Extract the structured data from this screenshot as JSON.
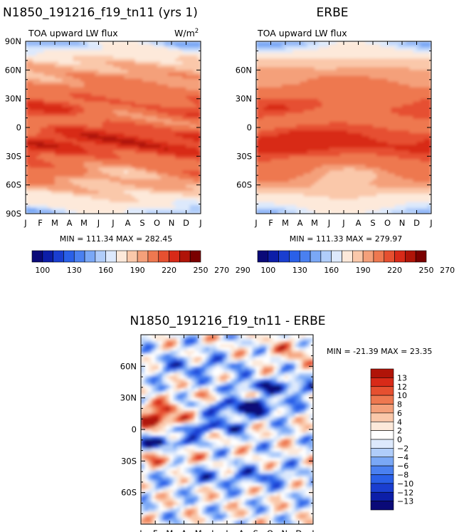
{
  "colors": {
    "abs_scale": [
      "#0a0a78",
      "#0c1ea8",
      "#1a3ed0",
      "#2a60e8",
      "#4a80f0",
      "#7aa8f6",
      "#b0cdfa",
      "#dde9fc",
      "#fde9da",
      "#fac8aa",
      "#f4a07a",
      "#ee7850",
      "#e65030",
      "#d82a18",
      "#b01408",
      "#7a0000"
    ],
    "diff_scale": [
      "#0a0a78",
      "#0c1ea8",
      "#1a3ed0",
      "#2a60e8",
      "#4a80f0",
      "#7aa8f6",
      "#b0cdfa",
      "#dde9fc",
      "#ffffff",
      "#fde9da",
      "#fac8aa",
      "#f4a07a",
      "#ee7850",
      "#e65030",
      "#d82a18",
      "#b01408",
      "#7a0000"
    ]
  },
  "chart_data": [
    {
      "type": "heatmap",
      "panel": "model",
      "title": "N1850_191216_f19_tn11 (yrs 1)",
      "subtitle_left": "TOA upward LW flux",
      "units_base": "W/m",
      "units_exp": "2",
      "x": [
        "J",
        "F",
        "M",
        "A",
        "M",
        "J",
        "J",
        "A",
        "S",
        "O",
        "N",
        "D",
        "J"
      ],
      "y_ticks": [
        "90N",
        "60N",
        "30N",
        "0",
        "30S",
        "60S",
        "90S"
      ],
      "y_range": [
        -90,
        90
      ],
      "stats": "MIN = 111.34  MAX = 282.45",
      "min": 111.34,
      "max": 282.45,
      "levels": [
        100,
        110,
        120,
        130,
        140,
        150,
        160,
        170,
        180,
        190,
        200,
        210,
        220,
        230,
        240,
        250,
        260,
        270,
        280,
        290
      ],
      "colorbar_labels": [
        "100",
        "130",
        "160",
        "190",
        "220",
        "250",
        "270",
        "290"
      ]
    },
    {
      "type": "heatmap",
      "panel": "obs",
      "title": "ERBE",
      "subtitle_left": "TOA upward LW flux",
      "x": [
        "J",
        "F",
        "M",
        "A",
        "M",
        "J",
        "J",
        "A",
        "S",
        "O",
        "N",
        "D",
        "J"
      ],
      "y_ticks": [
        "60N",
        "30N",
        "0",
        "30S",
        "60S"
      ],
      "y_range": [
        -90,
        90
      ],
      "stats": "MIN = 111.33  MAX = 279.97",
      "min": 111.33,
      "max": 279.97,
      "levels": [
        100,
        110,
        120,
        130,
        140,
        150,
        160,
        170,
        180,
        190,
        200,
        210,
        220,
        230,
        240,
        250,
        260,
        270,
        280,
        290
      ],
      "colorbar_labels": [
        "100",
        "130",
        "160",
        "190",
        "220",
        "250",
        "270",
        "290"
      ]
    },
    {
      "type": "heatmap",
      "panel": "difference",
      "title": "N1850_191216_f19_tn11 - ERBE",
      "x": [
        "J",
        "F",
        "M",
        "A",
        "M",
        "J",
        "J",
        "A",
        "S",
        "O",
        "N",
        "D",
        "J"
      ],
      "y_ticks": [
        "60N",
        "30N",
        "0",
        "30S",
        "60S"
      ],
      "y_range": [
        -90,
        90
      ],
      "stats": "MIN = -21.39  MAX =  23.35",
      "min": -21.39,
      "max": 23.35,
      "levels": [
        -13,
        -12,
        -10,
        -8,
        -6,
        -4,
        -2,
        0,
        2,
        4,
        6,
        8,
        10,
        12,
        13
      ],
      "colorbar_labels": [
        "13",
        "12",
        "10",
        "8",
        "6",
        "4",
        "2",
        "0",
        "−2",
        "−4",
        "−6",
        "−8",
        "−10",
        "−12",
        "−13"
      ]
    }
  ]
}
